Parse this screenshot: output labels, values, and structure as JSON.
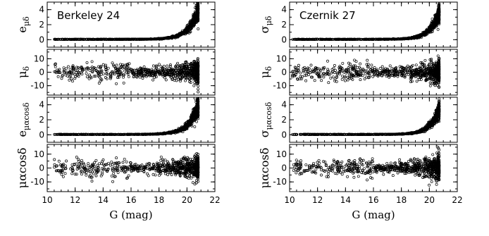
{
  "figure": {
    "xlabel": "G (mag)",
    "x_ticks": [
      "10",
      "12",
      "14",
      "16",
      "18",
      "20",
      "22"
    ],
    "xlim": [
      10,
      22
    ]
  },
  "chart_data": [
    {
      "type": "scatter",
      "column": "left",
      "cluster": "Berkeley 24",
      "panels": [
        {
          "ylabel_main": "e",
          "ylabel_sub": "μδ",
          "ylim": [
            -1,
            5
          ],
          "y_ticks": [
            "0",
            "2",
            "4"
          ],
          "trend": "error",
          "g_min": 10.5,
          "g_max": 20.8,
          "n_points": 900,
          "err_params": [
            0.05,
            3.8,
            1.4
          ]
        },
        {
          "ylabel_main": "μ",
          "ylabel_sub": "δ",
          "ylim": [
            -17,
            17
          ],
          "y_ticks": [
            "-10",
            "0",
            "10"
          ],
          "trend": "pm",
          "g_min": 10.5,
          "g_max": 20.8,
          "n_points": 800,
          "center": 0
        },
        {
          "ylabel_main": "e",
          "ylabel_sub": "μαcosδ",
          "ylim": [
            -1,
            5
          ],
          "y_ticks": [
            "0",
            "2",
            "4"
          ],
          "trend": "error",
          "g_min": 10.5,
          "g_max": 20.8,
          "n_points": 900,
          "err_params": [
            0.05,
            3.8,
            1.4
          ]
        },
        {
          "ylabel_main": "μαcosδ",
          "ylabel_sub": "",
          "ylim": [
            -17,
            17
          ],
          "y_ticks": [
            "-10",
            "0",
            "10"
          ],
          "trend": "pm",
          "g_min": 10.5,
          "g_max": 20.8,
          "n_points": 800,
          "center": 0
        }
      ]
    },
    {
      "type": "scatter",
      "column": "right",
      "cluster": "Czernik 27",
      "panels": [
        {
          "ylabel_main": "σ",
          "ylabel_sub": "μδ",
          "ylim": [
            -1,
            5
          ],
          "y_ticks": [
            "0",
            "2",
            "4"
          ],
          "trend": "error",
          "g_min": 10.2,
          "g_max": 20.7,
          "n_points": 900,
          "err_params": [
            0.05,
            3.5,
            1.5
          ]
        },
        {
          "ylabel_main": "μ",
          "ylabel_sub": "δ",
          "ylim": [
            -17,
            17
          ],
          "y_ticks": [
            "-10",
            "0",
            "10"
          ],
          "trend": "pm",
          "g_min": 10.2,
          "g_max": 20.7,
          "n_points": 800,
          "center": 0
        },
        {
          "ylabel_main": "σ",
          "ylabel_sub": "μαcosδ",
          "ylim": [
            -1,
            5
          ],
          "y_ticks": [
            "0",
            "2",
            "4"
          ],
          "trend": "error",
          "g_min": 10.2,
          "g_max": 20.7,
          "n_points": 900,
          "err_params": [
            0.05,
            3.3,
            1.5
          ]
        },
        {
          "ylabel_main": "μαcosδ",
          "ylabel_sub": "",
          "ylim": [
            -17,
            17
          ],
          "y_ticks": [
            "-10",
            "0",
            "10"
          ],
          "trend": "pm",
          "g_min": 10.2,
          "g_max": 20.7,
          "n_points": 800,
          "center": 0
        }
      ]
    }
  ]
}
